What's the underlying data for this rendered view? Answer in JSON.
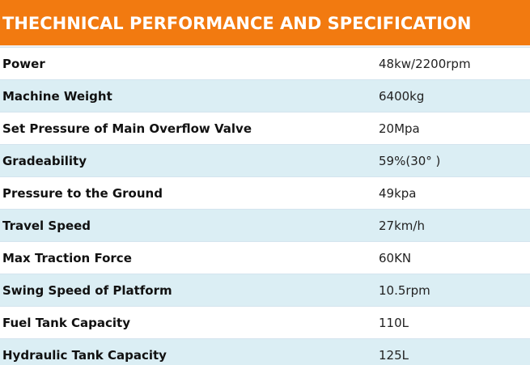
{
  "header": {
    "title": "THECHNICAL PERFORMANCE AND SPECIFICATION"
  },
  "specs": [
    {
      "label": "Power",
      "value": "48kw/2200rpm"
    },
    {
      "label": "Machine Weight",
      "value": "6400kg"
    },
    {
      "label": "Set Pressure of Main Overflow Valve",
      "value": "20Mpa"
    },
    {
      "label": "Gradeability",
      "value": "59%(30° )"
    },
    {
      "label": "Pressure to the Ground",
      "value": "49kpa"
    },
    {
      "label": "Travel Speed",
      "value": "27km/h"
    },
    {
      "label": "Max Traction Force",
      "value": "60KN"
    },
    {
      "label": "Swing Speed of Platform",
      "value": "10.5rpm"
    },
    {
      "label": "Fuel Tank Capacity",
      "value": "110L"
    },
    {
      "label": "Hydraulic Tank Capacity",
      "value": "125L"
    }
  ],
  "colors": {
    "header_bg": "#f27a10",
    "row_alt_bg": "#dbeef4"
  }
}
